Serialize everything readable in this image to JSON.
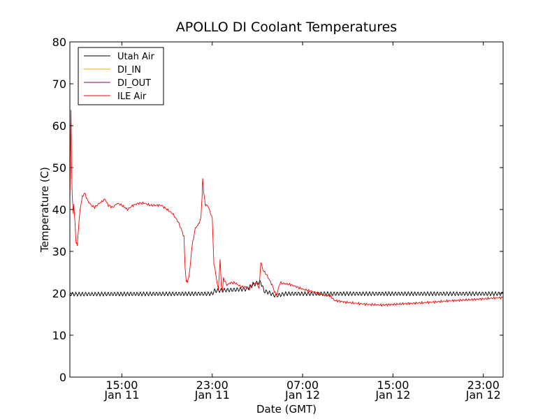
{
  "chart_data": {
    "type": "line",
    "title": "APOLLO DI Coolant Temperatures",
    "xlabel": "Date (GMT)",
    "ylabel": "Temperature (C)",
    "ylim": [
      0,
      80
    ],
    "yticks": [
      0,
      10,
      20,
      30,
      40,
      50,
      60,
      70,
      80
    ],
    "xlim_hours": [
      10.4,
      48.75
    ],
    "xticks": [
      {
        "h": 15,
        "time": "15:00",
        "date": "Jan 11"
      },
      {
        "h": 23,
        "time": "23:00",
        "date": "Jan 11"
      },
      {
        "h": 31,
        "time": "07:00",
        "date": "Jan 12"
      },
      {
        "h": 39,
        "time": "15:00",
        "date": "Jan 12"
      },
      {
        "h": 47,
        "time": "23:00",
        "date": "Jan 12"
      }
    ],
    "grid": false,
    "legend_position": "top-left",
    "series": [
      {
        "name": "Utah Air",
        "color": "#000000",
        "oscillation_amplitude": 0.5,
        "points": [
          [
            10.4,
            19.8
          ],
          [
            23.0,
            19.9
          ],
          [
            23.2,
            20.6
          ],
          [
            26.0,
            21.0
          ],
          [
            26.5,
            21.8
          ],
          [
            27.0,
            22.5
          ],
          [
            27.3,
            22.7
          ],
          [
            27.6,
            20.5
          ],
          [
            28.0,
            20.2
          ],
          [
            28.6,
            19.4
          ],
          [
            29.5,
            19.9
          ],
          [
            48.75,
            19.9
          ]
        ]
      },
      {
        "name": "DI_IN",
        "color": "#ffa500",
        "points": []
      },
      {
        "name": "DI_OUT",
        "color": "#800080",
        "points": []
      },
      {
        "name": "ILE Air",
        "color": "#ff0000",
        "points": [
          [
            10.4,
            42.0
          ],
          [
            10.5,
            63.5
          ],
          [
            10.55,
            50.0
          ],
          [
            10.6,
            44.0
          ],
          [
            10.7,
            39.0
          ],
          [
            10.75,
            41.0
          ],
          [
            10.85,
            37.0
          ],
          [
            10.95,
            32.0
          ],
          [
            11.05,
            31.5
          ],
          [
            11.15,
            35.0
          ],
          [
            11.3,
            40.0
          ],
          [
            11.5,
            43.0
          ],
          [
            11.7,
            44.0
          ],
          [
            12.0,
            42.0
          ],
          [
            12.3,
            41.0
          ],
          [
            12.6,
            40.5
          ],
          [
            13.0,
            41.5
          ],
          [
            13.3,
            42.0
          ],
          [
            13.5,
            42.5
          ],
          [
            13.8,
            41.0
          ],
          [
            14.2,
            40.5
          ],
          [
            14.6,
            41.5
          ],
          [
            15.0,
            41.0
          ],
          [
            15.5,
            40.0
          ],
          [
            16.0,
            41.0
          ],
          [
            16.5,
            41.5
          ],
          [
            17.0,
            41.5
          ],
          [
            17.5,
            41.0
          ],
          [
            18.0,
            41.0
          ],
          [
            18.5,
            41.0
          ],
          [
            19.0,
            40.0
          ],
          [
            19.5,
            39.0
          ],
          [
            20.0,
            37.0
          ],
          [
            20.3,
            35.0
          ],
          [
            20.5,
            33.5
          ],
          [
            20.6,
            26.0
          ],
          [
            20.7,
            23.0
          ],
          [
            20.8,
            22.5
          ],
          [
            21.0,
            25.0
          ],
          [
            21.2,
            31.0
          ],
          [
            21.5,
            35.5
          ],
          [
            21.8,
            36.5
          ],
          [
            22.0,
            38.0
          ],
          [
            22.1,
            43.0
          ],
          [
            22.15,
            47.5
          ],
          [
            22.25,
            44.0
          ],
          [
            22.4,
            41.0
          ],
          [
            22.6,
            41.0
          ],
          [
            22.8,
            39.5
          ],
          [
            23.0,
            38.0
          ],
          [
            23.15,
            27.0
          ],
          [
            23.3,
            25.0
          ],
          [
            23.45,
            22.0
          ],
          [
            23.55,
            21.0
          ],
          [
            23.7,
            28.0
          ],
          [
            23.8,
            22.0
          ],
          [
            23.9,
            20.5
          ],
          [
            24.0,
            23.5
          ],
          [
            24.3,
            22.0
          ],
          [
            24.6,
            22.5
          ],
          [
            25.0,
            22.5
          ],
          [
            25.3,
            22.0
          ],
          [
            25.6,
            21.5
          ],
          [
            26.0,
            21.5
          ],
          [
            26.3,
            21.0
          ],
          [
            26.6,
            22.5
          ],
          [
            27.0,
            22.3
          ],
          [
            27.15,
            21.0
          ],
          [
            27.3,
            27.5
          ],
          [
            27.5,
            25.5
          ],
          [
            27.8,
            24.5
          ],
          [
            28.1,
            23.0
          ],
          [
            28.3,
            22.0
          ],
          [
            28.5,
            20.5
          ],
          [
            28.7,
            19.5
          ],
          [
            29.0,
            22.5
          ],
          [
            30.0,
            22.0
          ],
          [
            31.0,
            21.0
          ],
          [
            32.0,
            20.3
          ],
          [
            33.0,
            19.5
          ],
          [
            33.5,
            19.3
          ],
          [
            33.8,
            18.3
          ],
          [
            35.0,
            17.8
          ],
          [
            37.0,
            17.3
          ],
          [
            38.0,
            17.2
          ],
          [
            40.0,
            17.5
          ],
          [
            42.0,
            17.8
          ],
          [
            44.0,
            18.2
          ],
          [
            46.0,
            18.5
          ],
          [
            48.75,
            19.0
          ]
        ]
      }
    ]
  }
}
